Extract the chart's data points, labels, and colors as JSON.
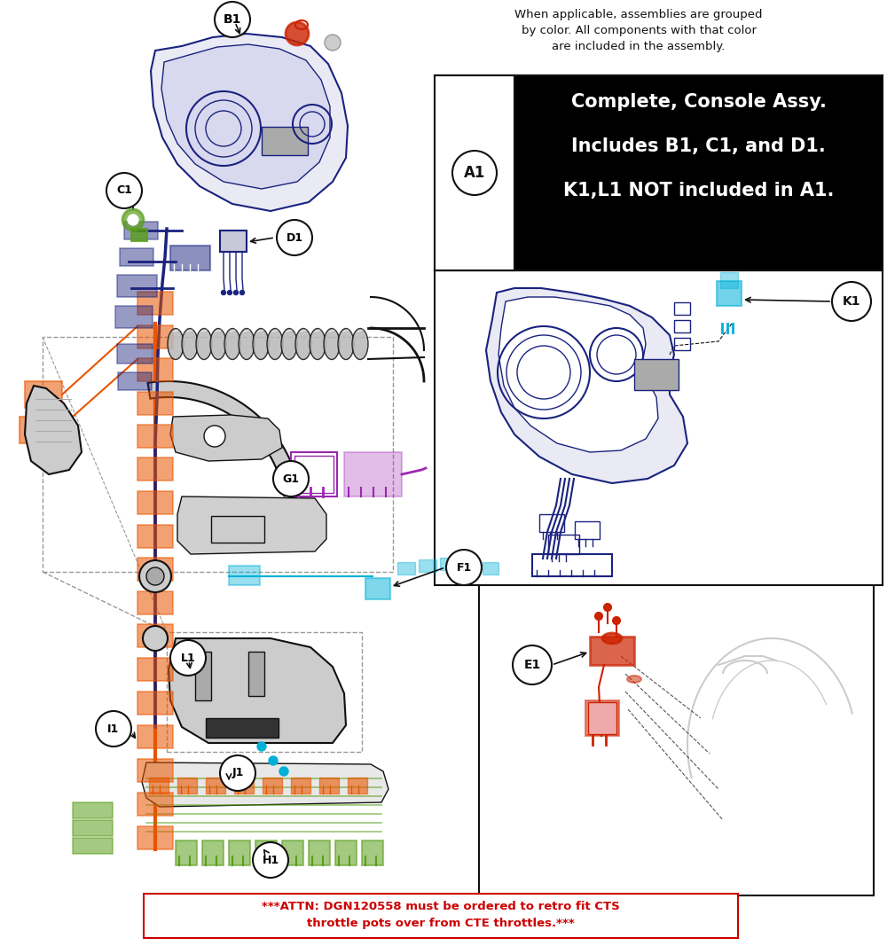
{
  "bg_color": "#ffffff",
  "top_note_line1": "When applicable, assemblies are grouped",
  "top_note_line2": "by color. All components with that color",
  "top_note_line3": "are included in the assembly.",
  "a1_text_line1": "Complete, Console Assy.",
  "a1_text_line2": "Includes B1, C1, and D1.",
  "a1_text_line3": "K1,L1 NOT included in A1.",
  "bottom_note_line1": "***ATTN: DGN120558 must be ordered to retro fit CTS",
  "bottom_note_line2": "throttle pots over from CTE throttles.***",
  "dark_blue": "#1a237e",
  "light_blue": "#00b0d8",
  "orange": "#e85500",
  "green": "#5a9e1a",
  "red": "#cc2200",
  "purple": "#9c27b0",
  "black": "#111111",
  "gray": "#999999",
  "light_gray": "#cccccc",
  "mid_gray": "#aaaaaa",
  "pale_blue_fill": "#eaeaf5",
  "note_red": "#cc0000"
}
